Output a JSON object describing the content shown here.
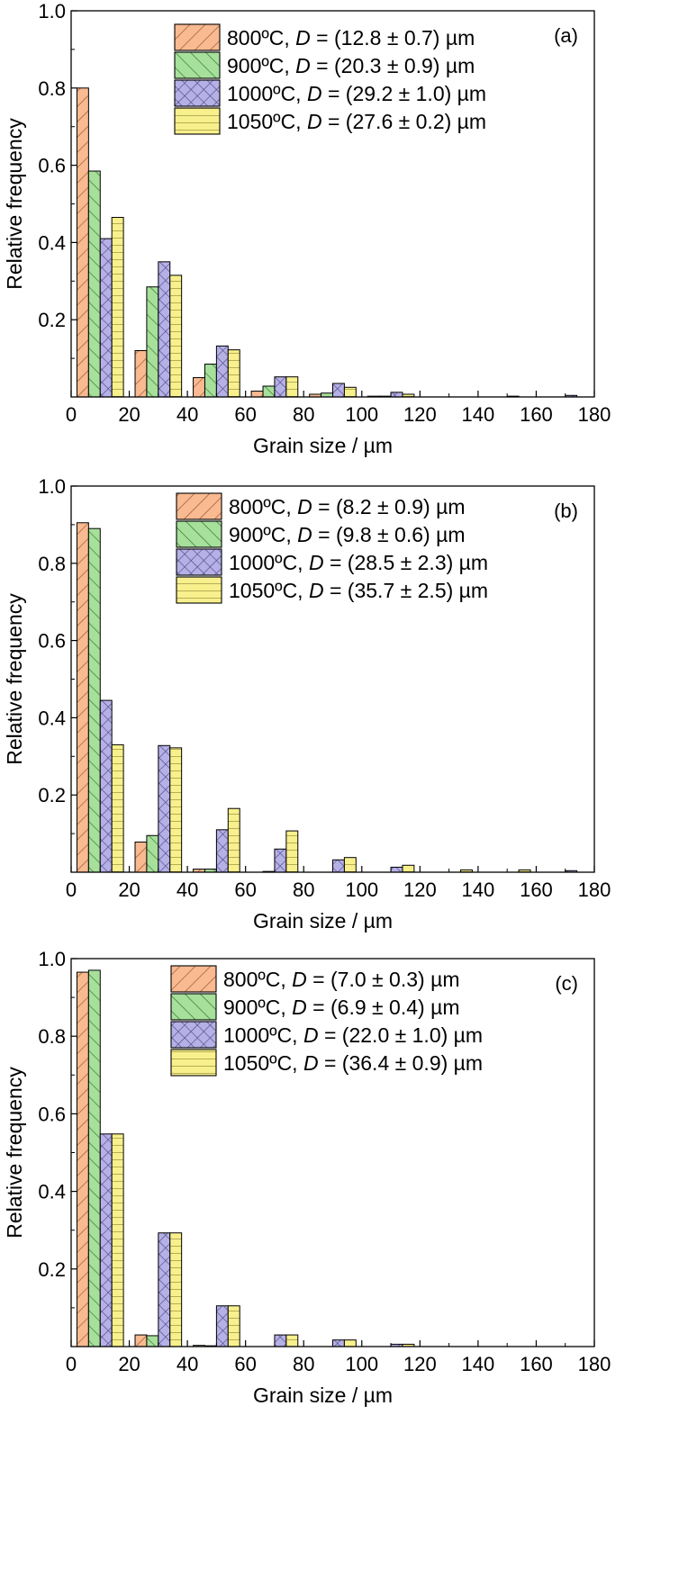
{
  "colors": {
    "800C": "#f9ba91",
    "900C": "#a6e09b",
    "1000C": "#b5b0e6",
    "1050C": "#f8f08c",
    "stroke": "#000000"
  },
  "chart_data": [
    {
      "type": "bar",
      "panel_label": "(a)",
      "xlabel": "Grain size / µm",
      "ylabel": "Relative frequency",
      "xlim": [
        0,
        180
      ],
      "ylim": [
        0,
        1.0
      ],
      "xticks": [
        "0",
        "20",
        "40",
        "60",
        "80",
        "100",
        "120",
        "140",
        "160",
        "180"
      ],
      "yticks": [
        "0.2",
        "0.4",
        "0.6",
        "0.8",
        "1.0"
      ],
      "legend_position": "top-center",
      "categories": [
        10,
        30,
        50,
        70,
        90,
        110,
        130,
        150,
        170
      ],
      "series": [
        {
          "name": "800ºC, D = (12.8 ± 0.7) µm",
          "legend": {
            "pre": "800ºC, ",
            "italic": "D",
            "post": " = (12.8 ± 0.7) µm"
          },
          "pattern": "diag-right",
          "values": [
            0.8,
            0.12,
            0.05,
            0.015,
            0.007,
            0.002,
            0,
            0,
            0
          ]
        },
        {
          "name": "900ºC, D = (20.3 ± 0.9) µm",
          "legend": {
            "pre": "900ºC, ",
            "italic": "D",
            "post": " = (20.3 ± 0.9) µm"
          },
          "pattern": "diag-left",
          "values": [
            0.585,
            0.285,
            0.085,
            0.028,
            0.01,
            0.002,
            0,
            0,
            0
          ]
        },
        {
          "name": "1000ºC, D = (29.2 ± 1.0) µm",
          "legend": {
            "pre": "1000ºC, ",
            "italic": "D",
            "post": " = (29.2 ± 1.0) µm"
          },
          "pattern": "cross",
          "values": [
            0.41,
            0.35,
            0.132,
            0.052,
            0.035,
            0.012,
            0,
            0.002,
            0.004
          ]
        },
        {
          "name": "1050ºC, D = (27.6 ± 0.2) µm",
          "legend": {
            "pre": "1050ºC, ",
            "italic": "D",
            "post": " = (27.6 ± 0.2) µm"
          },
          "pattern": "horiz",
          "values": [
            0.465,
            0.315,
            0.122,
            0.052,
            0.025,
            0.007,
            0,
            0,
            0
          ]
        }
      ]
    },
    {
      "type": "bar",
      "panel_label": "(b)",
      "xlabel": "Grain size / µm",
      "ylabel": "Relative frequency",
      "xlim": [
        0,
        180
      ],
      "ylim": [
        0,
        1.0
      ],
      "xticks": [
        "0",
        "20",
        "40",
        "60",
        "80",
        "100",
        "120",
        "140",
        "160",
        "180"
      ],
      "yticks": [
        "0.2",
        "0.4",
        "0.6",
        "0.8",
        "1.0"
      ],
      "legend_position": "top-center",
      "categories": [
        10,
        30,
        50,
        70,
        90,
        110,
        130,
        150,
        170
      ],
      "series": [
        {
          "name": "800ºC, D = (8.2 ± 0.9) µm",
          "legend": {
            "pre": "800ºC, ",
            "italic": "D",
            "post": " = (8.2 ± 0.9) µm"
          },
          "pattern": "diag-right",
          "values": [
            0.905,
            0.078,
            0.008,
            0,
            0,
            0,
            0,
            0,
            0
          ]
        },
        {
          "name": "900ºC, D = (9.8 ± 0.6) µm",
          "legend": {
            "pre": "900ºC, ",
            "italic": "D",
            "post": " = (9.8 ± 0.6) µm"
          },
          "pattern": "diag-left",
          "values": [
            0.89,
            0.095,
            0.008,
            0.002,
            0,
            0,
            0,
            0,
            0
          ]
        },
        {
          "name": "1000ºC, D = (28.5 ± 2.3) µm",
          "legend": {
            "pre": "1000ºC, ",
            "italic": "D",
            "post": " = (28.5 ± 2.3) µm"
          },
          "pattern": "cross",
          "values": [
            0.445,
            0.328,
            0.11,
            0.06,
            0.032,
            0.013,
            0,
            0,
            0.004
          ]
        },
        {
          "name": "1050ºC, D = (35.7 ± 2.5) µm",
          "legend": {
            "pre": "1050ºC, ",
            "italic": "D",
            "post": " = (35.7 ± 2.5) µm"
          },
          "pattern": "horiz",
          "values": [
            0.33,
            0.322,
            0.165,
            0.107,
            0.038,
            0.018,
            0.006,
            0.006,
            0
          ]
        }
      ]
    },
    {
      "type": "bar",
      "panel_label": "(c)",
      "xlabel": "Grain size / µm",
      "ylabel": "Relative frequency",
      "xlim": [
        0,
        180
      ],
      "ylim": [
        0,
        1.0
      ],
      "xticks": [
        "0",
        "20",
        "40",
        "60",
        "80",
        "100",
        "120",
        "140",
        "160",
        "180"
      ],
      "yticks": [
        "0.2",
        "0.4",
        "0.6",
        "0.8",
        "1.0"
      ],
      "legend_position": "top-center",
      "categories": [
        10,
        30,
        50,
        70,
        90,
        110,
        130,
        150,
        170
      ],
      "series": [
        {
          "name": "800ºC, D = (7.0 ± 0.3) µm",
          "legend": {
            "pre": "800ºC, ",
            "italic": "D",
            "post": " = (7.0 ± 0.3) µm"
          },
          "pattern": "diag-right",
          "values": [
            0.965,
            0.03,
            0.003,
            0,
            0,
            0,
            0,
            0,
            0
          ]
        },
        {
          "name": "900ºC, D = (6.9 ± 0.4) µm",
          "legend": {
            "pre": "900ºC, ",
            "italic": "D",
            "post": " = (6.9 ± 0.4) µm"
          },
          "pattern": "diag-left",
          "values": [
            0.97,
            0.028,
            0.002,
            0,
            0,
            0,
            0,
            0,
            0
          ]
        },
        {
          "name": "1000ºC, D = (22.0 ± 1.0) µm",
          "legend": {
            "pre": "1000ºC, ",
            "italic": "D",
            "post": " = (22.0 ± 1.0) µm"
          },
          "pattern": "cross",
          "values": [
            0.548,
            0.293,
            0.105,
            0.03,
            0.017,
            0.006,
            0,
            0,
            0
          ]
        },
        {
          "name": "1050ºC, D = (36.4 ± 0.9) µm",
          "legend": {
            "pre": "1050ºC, ",
            "italic": "D",
            "post": " = (36.4 ± 0.9) µm"
          },
          "pattern": "horiz",
          "values": [
            0.548,
            0.293,
            0.105,
            0.03,
            0.017,
            0.006,
            0,
            0,
            0
          ]
        }
      ]
    }
  ]
}
